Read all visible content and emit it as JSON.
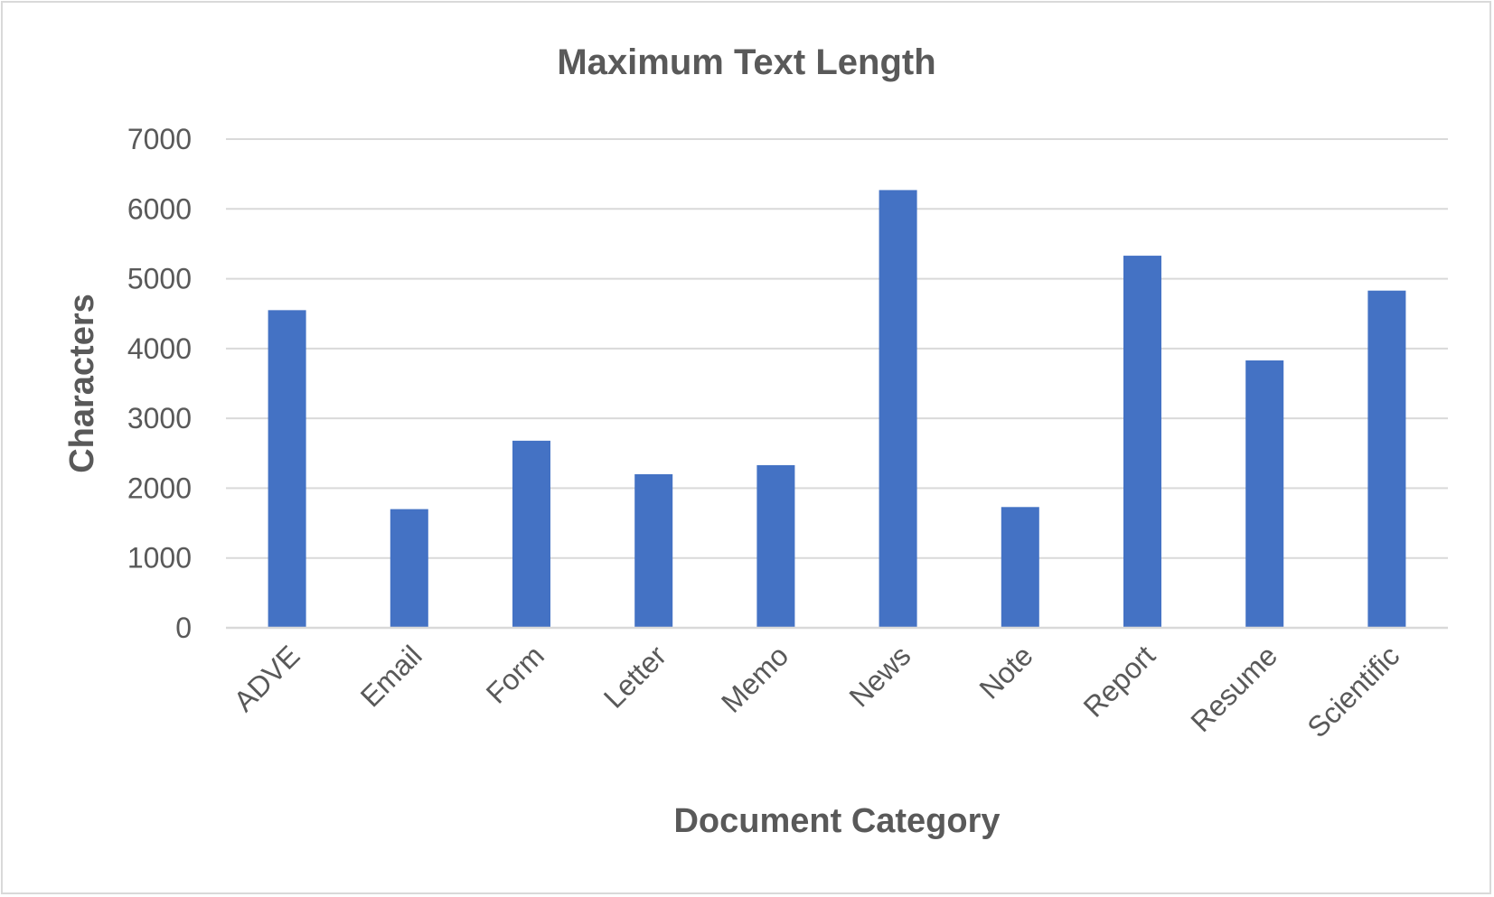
{
  "chart_data": {
    "type": "bar",
    "title": "Maximum Text Length",
    "xlabel": "Document Category",
    "ylabel": "Characters",
    "categories": [
      "ADVE",
      "Email",
      "Form",
      "Letter",
      "Memo",
      "News",
      "Note",
      "Report",
      "Resume",
      "Scientific"
    ],
    "values": [
      4550,
      1700,
      2680,
      2200,
      2330,
      6270,
      1730,
      5330,
      3830,
      4830
    ],
    "ylim": [
      0,
      7000
    ],
    "yticks": [
      0,
      1000,
      2000,
      3000,
      4000,
      5000,
      6000,
      7000
    ],
    "grid": true,
    "legend": "none",
    "bar_color": "#4472c4"
  }
}
